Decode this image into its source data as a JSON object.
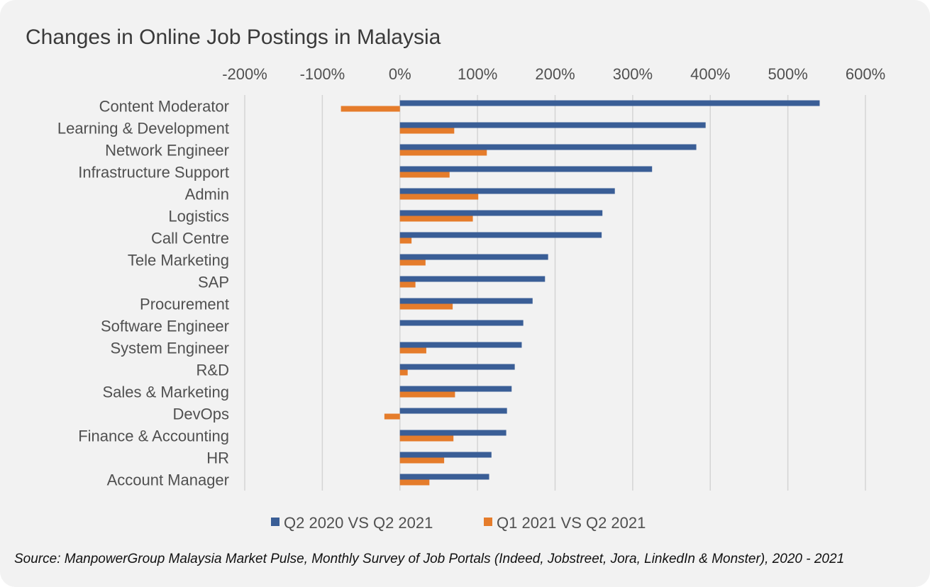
{
  "source": "Source: ManpowerGroup Malaysia Market Pulse, Monthly Survey of Job Portals (Indeed, Jobstreet, Jora, LinkedIn & Monster), 2020 - 2021",
  "chart_data": {
    "type": "bar",
    "orientation": "horizontal",
    "title": "Changes in Online Job Postings in Malaysia",
    "xlim": [
      -200,
      600
    ],
    "x_ticks": [
      "-200%",
      "-100%",
      "0%",
      "100%",
      "200%",
      "300%",
      "400%",
      "500%",
      "600%"
    ],
    "x_tick_values": [
      -200,
      -100,
      0,
      100,
      200,
      300,
      400,
      500,
      600
    ],
    "x_axis_position": "top",
    "grid": true,
    "legend_position": "bottom",
    "categories": [
      "Content Moderator",
      "Learning & Development",
      "Network Engineer",
      "Infrastructure Support",
      "Admin",
      "Logistics",
      "Call Centre",
      "Tele Marketing",
      "SAP",
      "Procurement",
      "Software Engineer",
      "System Engineer",
      "R&D",
      "Sales & Marketing",
      "DevOps",
      "Finance & Accounting",
      "HR",
      "Account Manager"
    ],
    "series": [
      {
        "name": "Q2 2020 VS Q2 2021",
        "color": "#3a5e96",
        "values": [
          541,
          394,
          382,
          325,
          277,
          261,
          260,
          191,
          187,
          171,
          159,
          157,
          148,
          144,
          138,
          137,
          118,
          115
        ]
      },
      {
        "name": "Q1 2021 VS Q2 2021",
        "color": "#e57c2b",
        "values": [
          -76,
          70,
          112,
          64,
          101,
          94,
          15,
          33,
          20,
          68,
          0,
          34,
          10,
          71,
          -20,
          69,
          57,
          38
        ]
      }
    ]
  }
}
